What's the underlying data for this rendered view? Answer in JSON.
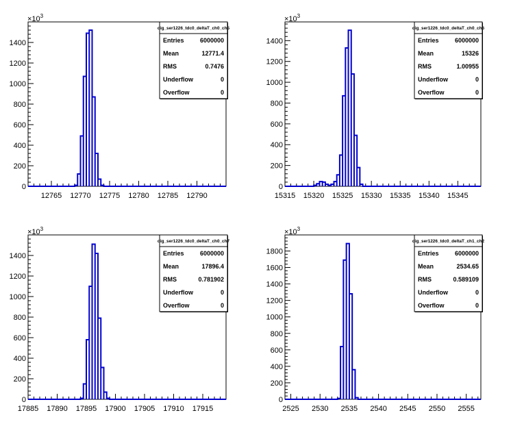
{
  "chart_data": [
    {
      "type": "histogram",
      "title": "",
      "xlabel": "",
      "ylabel": "",
      "y_exponent_label": "×10",
      "y_exponent_sup": "3",
      "xlim": [
        12761,
        12795
      ],
      "ylim": [
        0,
        1600
      ],
      "xticks": [
        12765,
        12770,
        12775,
        12780,
        12785,
        12790
      ],
      "yticks": [
        0,
        200,
        400,
        600,
        800,
        1000,
        1200,
        1400
      ],
      "bin_width": 0.5,
      "bins": [
        {
          "x": 12769.0,
          "y": 10
        },
        {
          "x": 12769.5,
          "y": 120
        },
        {
          "x": 12770.0,
          "y": 490
        },
        {
          "x": 12770.5,
          "y": 1070
        },
        {
          "x": 12771.0,
          "y": 1490
        },
        {
          "x": 12771.5,
          "y": 1520
        },
        {
          "x": 12772.0,
          "y": 870
        },
        {
          "x": 12772.5,
          "y": 320
        },
        {
          "x": 12773.0,
          "y": 70
        },
        {
          "x": 12773.5,
          "y": 10
        }
      ],
      "stats": {
        "name": "dig_ser1226_tdc0_deltaT_ch0_ch5",
        "rows": [
          {
            "label": "Entries",
            "value": "6000000"
          },
          {
            "label": "Mean",
            "value": "12771.4"
          },
          {
            "label": "RMS",
            "value": "0.7476"
          },
          {
            "label": "Underflow",
            "value": "0"
          },
          {
            "label": "Overflow",
            "value": "0"
          }
        ]
      },
      "line_color": "#0000cc"
    },
    {
      "type": "histogram",
      "title": "",
      "xlabel": "",
      "ylabel": "",
      "y_exponent_label": "×10",
      "y_exponent_sup": "3",
      "xlim": [
        15315,
        15349
      ],
      "ylim": [
        0,
        1580
      ],
      "xticks": [
        15315,
        15320,
        15325,
        15330,
        15335,
        15340,
        15345
      ],
      "yticks": [
        0,
        200,
        400,
        600,
        800,
        1000,
        1200,
        1400
      ],
      "bin_width": 0.5,
      "bins": [
        {
          "x": 15320.0,
          "y": 10
        },
        {
          "x": 15320.5,
          "y": 25
        },
        {
          "x": 15321.0,
          "y": 45
        },
        {
          "x": 15321.5,
          "y": 40
        },
        {
          "x": 15322.0,
          "y": 20
        },
        {
          "x": 15322.5,
          "y": 10
        },
        {
          "x": 15323.0,
          "y": 20
        },
        {
          "x": 15323.5,
          "y": 45
        },
        {
          "x": 15324.0,
          "y": 110
        },
        {
          "x": 15324.5,
          "y": 300
        },
        {
          "x": 15325.0,
          "y": 870
        },
        {
          "x": 15325.5,
          "y": 1330
        },
        {
          "x": 15326.0,
          "y": 1500
        },
        {
          "x": 15326.5,
          "y": 1080
        },
        {
          "x": 15327.0,
          "y": 490
        },
        {
          "x": 15327.5,
          "y": 180
        },
        {
          "x": 15328.0,
          "y": 20
        }
      ],
      "stats": {
        "name": "dig_ser1226_tdc0_deltaT_ch0_ch6",
        "rows": [
          {
            "label": "Entries",
            "value": "6000000"
          },
          {
            "label": "Mean",
            "value": "15326"
          },
          {
            "label": "RMS",
            "value": "1.00955"
          },
          {
            "label": "Underflow",
            "value": "0"
          },
          {
            "label": "Overflow",
            "value": "0"
          }
        ]
      },
      "line_color": "#0000cc"
    },
    {
      "type": "histogram",
      "title": "",
      "xlabel": "",
      "ylabel": "",
      "y_exponent_label": "×10",
      "y_exponent_sup": "3",
      "xlim": [
        17885,
        17919
      ],
      "ylim": [
        0,
        1600
      ],
      "xticks": [
        17885,
        17890,
        17895,
        17900,
        17905,
        17910,
        17915
      ],
      "yticks": [
        0,
        200,
        400,
        600,
        800,
        1000,
        1200,
        1400
      ],
      "bin_width": 0.5,
      "bins": [
        {
          "x": 17894.0,
          "y": 10
        },
        {
          "x": 17894.5,
          "y": 150
        },
        {
          "x": 17895.0,
          "y": 580
        },
        {
          "x": 17895.5,
          "y": 1100
        },
        {
          "x": 17896.0,
          "y": 1510
        },
        {
          "x": 17896.5,
          "y": 1420
        },
        {
          "x": 17897.0,
          "y": 790
        },
        {
          "x": 17897.5,
          "y": 310
        },
        {
          "x": 17898.0,
          "y": 70
        },
        {
          "x": 17898.5,
          "y": 10
        }
      ],
      "stats": {
        "name": "dig_ser1226_tdc0_deltaT_ch0_ch7",
        "rows": [
          {
            "label": "Entries",
            "value": "6000000"
          },
          {
            "label": "Mean",
            "value": "17896.4"
          },
          {
            "label": "RMS",
            "value": "0.781902"
          },
          {
            "label": "Underflow",
            "value": "0"
          },
          {
            "label": "Overflow",
            "value": "0"
          }
        ]
      },
      "line_color": "#0000cc"
    },
    {
      "type": "histogram",
      "title": "",
      "xlabel": "",
      "ylabel": "",
      "y_exponent_label": "×10",
      "y_exponent_sup": "3",
      "xlim": [
        2524,
        2557.5
      ],
      "ylim": [
        0,
        1995
      ],
      "xticks": [
        2525,
        2530,
        2535,
        2540,
        2545,
        2550,
        2555
      ],
      "yticks": [
        0,
        200,
        400,
        600,
        800,
        1000,
        1200,
        1400,
        1600,
        1800
      ],
      "bin_width": 0.5,
      "bins": [
        {
          "x": 2533.0,
          "y": 10
        },
        {
          "x": 2533.5,
          "y": 640
        },
        {
          "x": 2534.0,
          "y": 1690
        },
        {
          "x": 2534.5,
          "y": 1890
        },
        {
          "x": 2535.0,
          "y": 1280
        },
        {
          "x": 2535.5,
          "y": 360
        },
        {
          "x": 2536.0,
          "y": 20
        }
      ],
      "stats": {
        "name": "dig_ser1226_tdc0_deltaT_ch1_ch2",
        "rows": [
          {
            "label": "Entries",
            "value": "6000000"
          },
          {
            "label": "Mean",
            "value": "2534.65"
          },
          {
            "label": "RMS",
            "value": "0.589109"
          },
          {
            "label": "Underflow",
            "value": "0"
          },
          {
            "label": "Overflow",
            "value": "0"
          }
        ]
      },
      "line_color": "#0000cc"
    }
  ]
}
